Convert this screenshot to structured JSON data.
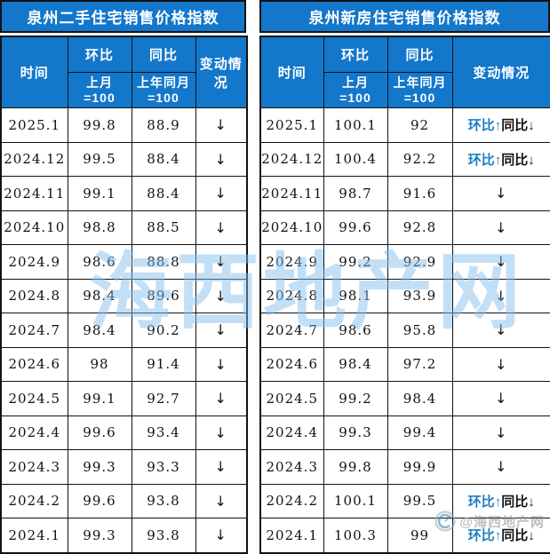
{
  "colors": {
    "header_blue": "#1377cb",
    "border_dark": "#121212",
    "up_text_blue": "#1a7dc2",
    "body_text": "#111111",
    "watermark_blue": "rgba(130,188,236,0.48)",
    "watermark_gray": "#8d8d8d"
  },
  "columns": {
    "time": "时间",
    "mom": "环比",
    "yoy": "同比",
    "mom_sub": "上月",
    "yoy_sub": "上年同月",
    "base_100": "=100",
    "change": "变动情况"
  },
  "symbols": {
    "down": "↓",
    "up": "↑"
  },
  "change_parts": {
    "blue": "环比↑",
    "black": "同比↓"
  },
  "watermarks": {
    "center_text": "海西地产网",
    "corner_text": "@海西地产网"
  },
  "chart_data": [
    {
      "type": "table",
      "title": "泉州二手住宅销售价格指数",
      "columns": [
        "时间",
        "环比 上月=100",
        "同比 上年同月=100",
        "变动情况"
      ],
      "rows": [
        {
          "time": "2025.1",
          "mom": "99.8",
          "yoy": "88.9",
          "change": "↓"
        },
        {
          "time": "2024.12",
          "mom": "99.5",
          "yoy": "88.4",
          "change": "↓"
        },
        {
          "time": "2024.11",
          "mom": "99.1",
          "yoy": "88.4",
          "change": "↓"
        },
        {
          "time": "2024.10",
          "mom": "98.8",
          "yoy": "88.5",
          "change": "↓"
        },
        {
          "time": "2024.9",
          "mom": "98.6",
          "yoy": "88.8",
          "change": "↓"
        },
        {
          "time": "2024.8",
          "mom": "98.4",
          "yoy": "89.6",
          "change": "↓"
        },
        {
          "time": "2024.7",
          "mom": "98.4",
          "yoy": "90.2",
          "change": "↓"
        },
        {
          "time": "2024.6",
          "mom": "98",
          "yoy": "91.4",
          "change": "↓"
        },
        {
          "time": "2024.5",
          "mom": "99.1",
          "yoy": "92.7",
          "change": "↓"
        },
        {
          "time": "2024.4",
          "mom": "99.6",
          "yoy": "93.4",
          "change": "↓"
        },
        {
          "time": "2024.3",
          "mom": "99.3",
          "yoy": "93.3",
          "change": "↓"
        },
        {
          "time": "2024.2",
          "mom": "99.6",
          "yoy": "93.8",
          "change": "↓"
        },
        {
          "time": "2024.1",
          "mom": "99.3",
          "yoy": "93.8",
          "change": "↓"
        }
      ]
    },
    {
      "type": "table",
      "title": "泉州新房住宅销售价格指数",
      "columns": [
        "时间",
        "环比 上月=100",
        "同比 上年同月=100",
        "变动情况"
      ],
      "rows": [
        {
          "time": "2025.1",
          "mom": "100.1",
          "yoy": "92",
          "change": "环比↑同比↓"
        },
        {
          "time": "2024.12",
          "mom": "100.4",
          "yoy": "92.2",
          "change": "环比↑同比↓"
        },
        {
          "time": "2024.11",
          "mom": "98.7",
          "yoy": "91.6",
          "change": "↓"
        },
        {
          "time": "2024.10",
          "mom": "99.6",
          "yoy": "92.8",
          "change": "↓"
        },
        {
          "time": "2024.9",
          "mom": "99.2",
          "yoy": "92.9",
          "change": "↓"
        },
        {
          "time": "2024.8",
          "mom": "98.1",
          "yoy": "93.9",
          "change": "↓"
        },
        {
          "time": "2024.7",
          "mom": "98.6",
          "yoy": "95.8",
          "change": "↓"
        },
        {
          "time": "2024.6",
          "mom": "98.4",
          "yoy": "97.2",
          "change": "↓"
        },
        {
          "time": "2024.5",
          "mom": "99.2",
          "yoy": "98.4",
          "change": "↓"
        },
        {
          "time": "2024.4",
          "mom": "99.3",
          "yoy": "99.4",
          "change": "↓"
        },
        {
          "time": "2024.3",
          "mom": "99.8",
          "yoy": "99.9",
          "change": "↓"
        },
        {
          "time": "2024.2",
          "mom": "100.1",
          "yoy": "99.5",
          "change": "环比↑同比↓"
        },
        {
          "time": "2024.1",
          "mom": "100.3",
          "yoy": "99",
          "change": "环比↑同比↓"
        }
      ]
    }
  ]
}
